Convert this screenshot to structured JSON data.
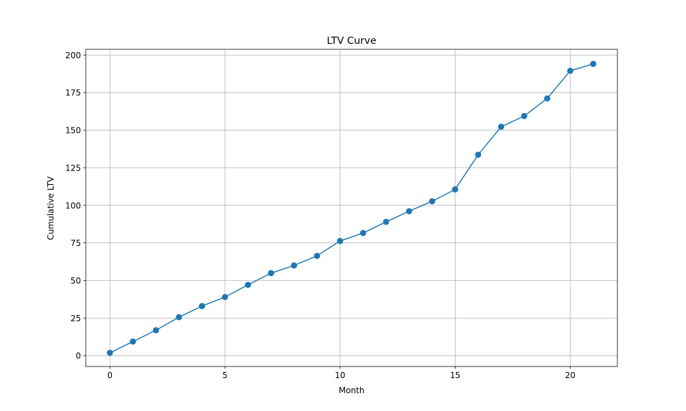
{
  "chart_data": {
    "type": "line",
    "title": "LTV Curve",
    "xlabel": "Month",
    "ylabel": "Cumulative LTV",
    "x": [
      0,
      1,
      2,
      3,
      4,
      5,
      6,
      7,
      8,
      9,
      10,
      11,
      12,
      13,
      14,
      15,
      16,
      17,
      18,
      19,
      20,
      21
    ],
    "series": [
      {
        "values": [
          1.9,
          9.4,
          16.9,
          25.6,
          33.0,
          39.0,
          47.1,
          54.9,
          60.0,
          66.4,
          76.3,
          81.6,
          89.0,
          96.1,
          102.7,
          110.6,
          133.7,
          152.3,
          159.4,
          171.1,
          189.5,
          194.1
        ],
        "color": "#1f77b4",
        "marker": "circle"
      }
    ],
    "xlim": [
      -1.05,
      22.05
    ],
    "ylim": [
      -7.2,
      203.8
    ],
    "xticks": [
      0,
      5,
      10,
      15,
      20
    ],
    "yticks": [
      0,
      25,
      50,
      75,
      100,
      125,
      150,
      175,
      200
    ],
    "grid": true
  }
}
